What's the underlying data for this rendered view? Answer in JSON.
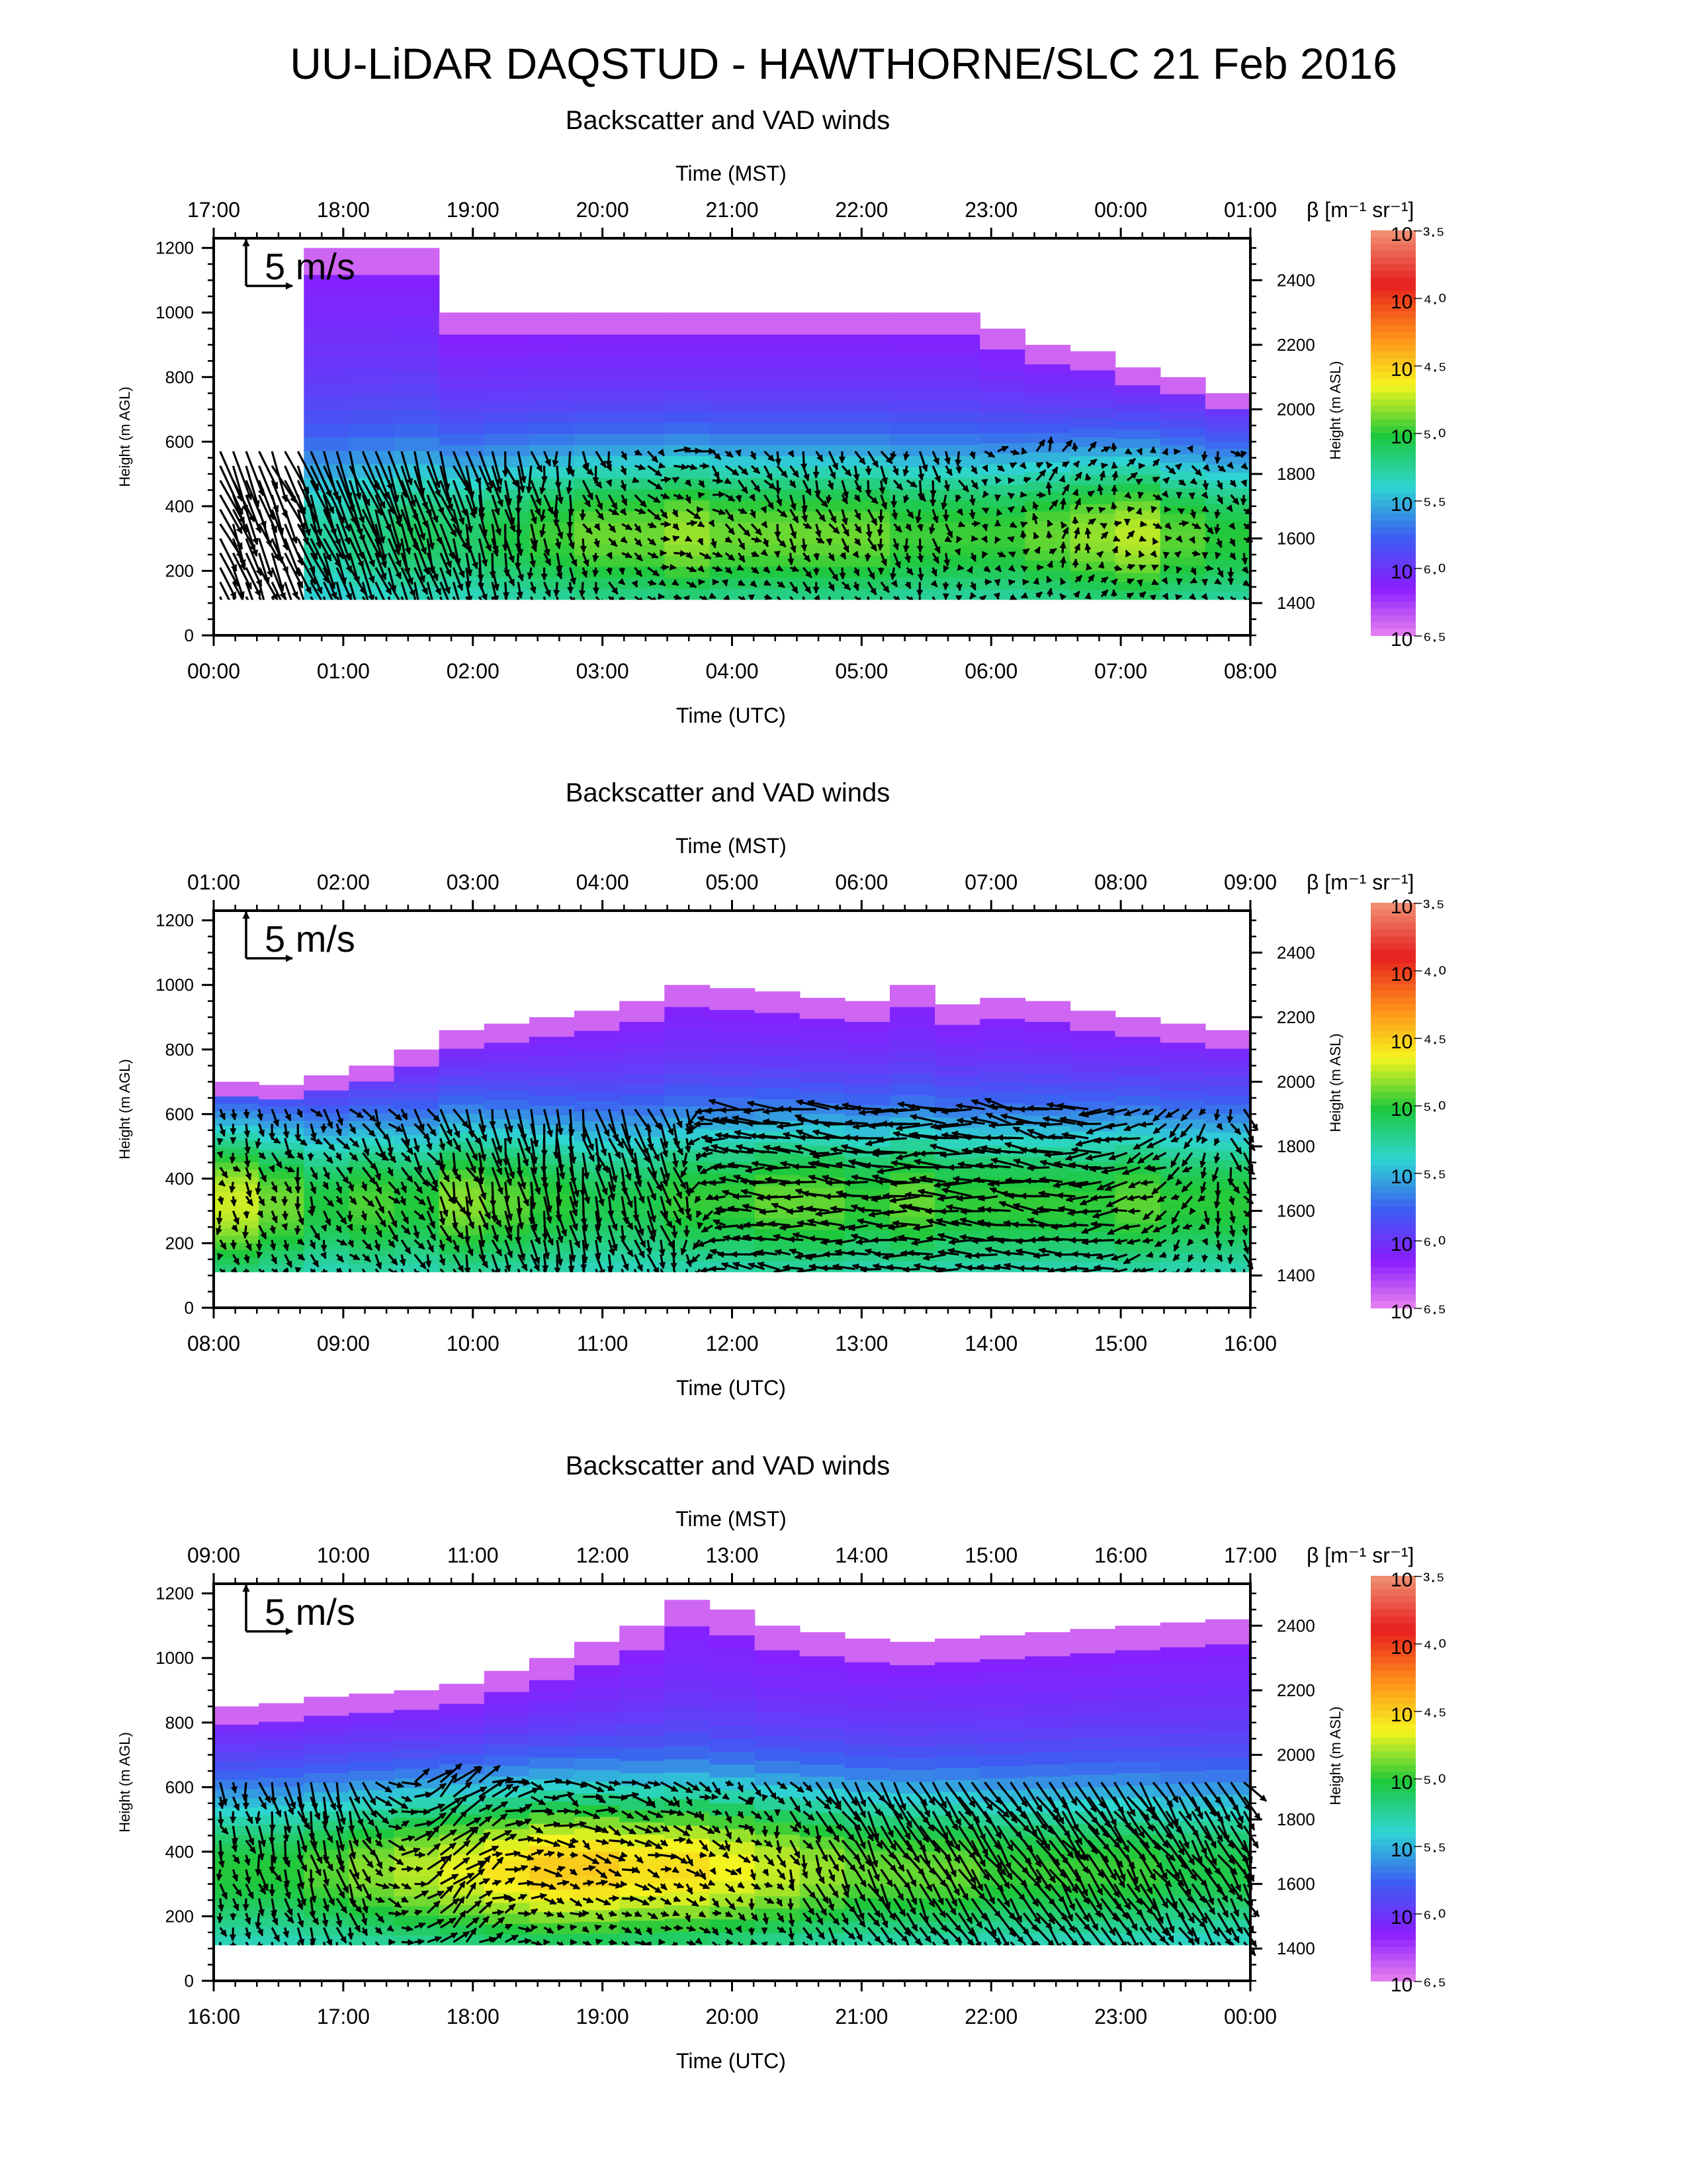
{
  "title": "UU-LiDAR DAQSTUD - HAWTHORNE/SLC 21 Feb 2016",
  "colors": {
    "white": "#ffffff",
    "scale": [
      "#ee88ee",
      "#8a1cff",
      "#3c5ef2",
      "#2ed6d2",
      "#1ec83c",
      "#f5f51e",
      "#ff8c1a",
      "#e61e1e",
      "#f08c70"
    ],
    "arrow": "#000000"
  },
  "icons": {
    "wind_arrow": "arrow-icon",
    "reference_arrow": "reference-arrow-icon"
  },
  "chart_data": [
    {
      "type": "heatmap",
      "title": "Backscatter and VAD winds",
      "top_xlabel": "Time (MST)",
      "top_ticks": [
        "17:00",
        "18:00",
        "19:00",
        "20:00",
        "21:00",
        "22:00",
        "23:00",
        "00:00",
        "01:00"
      ],
      "xlabel": "Time (UTC)",
      "bottom_ticks": [
        "00:00",
        "01:00",
        "02:00",
        "03:00",
        "04:00",
        "05:00",
        "06:00",
        "07:00",
        "08:00"
      ],
      "ylabel": "Height (m AGL)",
      "y_ticks": [
        "0",
        "200",
        "400",
        "600",
        "800",
        "1000",
        "1200"
      ],
      "ylim": [
        0,
        1230
      ],
      "right_ylabel": "Height (m ASL)",
      "right_ticks": [
        "1400",
        "1600",
        "1800",
        "2000",
        "2200",
        "2400"
      ],
      "right_ylim": [
        1300,
        2530
      ],
      "colorbar_label": "β [m⁻¹ sr⁻¹]",
      "colorbar_ticks": [
        "10⁻³·⁵",
        "10⁻⁴·⁰",
        "10⁻⁴·⁵",
        "10⁻⁵·⁰",
        "10⁻⁵·⁵",
        "10⁻⁶·⁰",
        "10⁻⁶·⁵"
      ],
      "colorbar_range": [
        -6.5,
        -3.5
      ],
      "reference_arrow_label": "5 m/s",
      "backscatter_top_agl": [
        0,
        0,
        1200,
        1200,
        1200,
        1000,
        1000,
        1000,
        1000,
        1000,
        1000,
        1000,
        1000,
        1000,
        1000,
        1000,
        1000,
        950,
        900,
        880,
        830,
        800,
        750
      ],
      "backscatter_bottom_agl": 110,
      "bright_layer": {
        "center_agl": 330,
        "strength": [
          0,
          0,
          0.3,
          0.35,
          0.4,
          0.4,
          0.45,
          0.5,
          0.55,
          0.55,
          0.6,
          0.55,
          0.55,
          0.55,
          0.55,
          0.5,
          0.5,
          0.5,
          0.55,
          0.6,
          0.65,
          0.55,
          0.5
        ]
      },
      "wind_top_agl": 600,
      "wind_regimes": [
        {
          "x": 0.0,
          "u": 2.0,
          "v": -4.5
        },
        {
          "x": 1.5,
          "u": 1.5,
          "v": -4.0
        },
        {
          "x": 2.6,
          "u": 0.2,
          "v": -2.0
        },
        {
          "x": 3.5,
          "u": 1.0,
          "v": -0.3
        },
        {
          "x": 4.5,
          "u": 0.6,
          "v": -1.2
        },
        {
          "x": 5.5,
          "u": 0.4,
          "v": -1.4
        },
        {
          "x": 6.5,
          "u": 0.3,
          "v": 1.0
        },
        {
          "x": 8.0,
          "u": 0.5,
          "v": -1.0
        }
      ]
    },
    {
      "type": "heatmap",
      "title": "Backscatter and VAD winds",
      "top_xlabel": "Time (MST)",
      "top_ticks": [
        "01:00",
        "02:00",
        "03:00",
        "04:00",
        "05:00",
        "06:00",
        "07:00",
        "08:00",
        "09:00"
      ],
      "xlabel": "Time (UTC)",
      "bottom_ticks": [
        "08:00",
        "09:00",
        "10:00",
        "11:00",
        "12:00",
        "13:00",
        "14:00",
        "15:00",
        "16:00"
      ],
      "ylabel": "Height (m AGL)",
      "y_ticks": [
        "0",
        "200",
        "400",
        "600",
        "800",
        "1000",
        "1200"
      ],
      "ylim": [
        0,
        1230
      ],
      "right_ylabel": "Height (m ASL)",
      "right_ticks": [
        "1400",
        "1600",
        "1800",
        "2000",
        "2200",
        "2400"
      ],
      "right_ylim": [
        1300,
        2530
      ],
      "colorbar_label": "β [m⁻¹ sr⁻¹]",
      "colorbar_ticks": [
        "10⁻³·⁵",
        "10⁻⁴·⁰",
        "10⁻⁴·⁵",
        "10⁻⁵·⁰",
        "10⁻⁵·⁵",
        "10⁻⁶·⁰",
        "10⁻⁶·⁵"
      ],
      "colorbar_range": [
        -6.5,
        -3.5
      ],
      "reference_arrow_label": "5 m/s",
      "backscatter_top_agl": [
        700,
        690,
        720,
        750,
        800,
        860,
        880,
        900,
        920,
        950,
        1000,
        990,
        980,
        960,
        950,
        1000,
        940,
        960,
        950,
        920,
        900,
        880,
        860
      ],
      "backscatter_bottom_agl": 110,
      "bright_layer": {
        "center_agl": 350,
        "strength": [
          0.7,
          0.6,
          0.5,
          0.55,
          0.5,
          0.6,
          0.55,
          0.5,
          0.45,
          0.45,
          0.5,
          0.5,
          0.55,
          0.55,
          0.5,
          0.55,
          0.5,
          0.5,
          0.5,
          0.5,
          0.55,
          0.5,
          0.5
        ]
      },
      "wind_top_agl": 620,
      "wind_regimes": [
        {
          "x": 0.0,
          "u": 0.2,
          "v": -1.0
        },
        {
          "x": 1.5,
          "u": 1.0,
          "v": -1.5
        },
        {
          "x": 2.5,
          "u": 0.5,
          "v": -3.0
        },
        {
          "x": 3.5,
          "u": 1.0,
          "v": -2.5
        },
        {
          "x": 4.0,
          "u": -2.5,
          "v": 0.3
        },
        {
          "x": 5.5,
          "u": -3.0,
          "v": 0.0
        },
        {
          "x": 6.3,
          "u": -3.0,
          "v": 0.5
        },
        {
          "x": 7.0,
          "u": -2.5,
          "v": -0.5
        },
        {
          "x": 8.0,
          "u": 1.0,
          "v": -1.5
        }
      ]
    },
    {
      "type": "heatmap",
      "title": "Backscatter and VAD winds",
      "top_xlabel": "Time (MST)",
      "top_ticks": [
        "09:00",
        "10:00",
        "11:00",
        "12:00",
        "13:00",
        "14:00",
        "15:00",
        "16:00",
        "17:00"
      ],
      "xlabel": "Time (UTC)",
      "bottom_ticks": [
        "16:00",
        "17:00",
        "18:00",
        "19:00",
        "20:00",
        "21:00",
        "22:00",
        "23:00",
        "00:00"
      ],
      "ylabel": "Height (m AGL)",
      "y_ticks": [
        "0",
        "200",
        "400",
        "600",
        "800",
        "1000",
        "1200"
      ],
      "ylim": [
        0,
        1230
      ],
      "right_ylabel": "Height (m ASL)",
      "right_ticks": [
        "1400",
        "1600",
        "1800",
        "2000",
        "2200",
        "2400"
      ],
      "right_ylim": [
        1300,
        2530
      ],
      "colorbar_label": "β [m⁻¹ sr⁻¹]",
      "colorbar_ticks": [
        "10⁻³·⁵",
        "10⁻⁴·⁰",
        "10⁻⁴·⁵",
        "10⁻⁵·⁰",
        "10⁻⁵·⁵",
        "10⁻⁶·⁰",
        "10⁻⁶·⁵"
      ],
      "colorbar_range": [
        -6.5,
        -3.5
      ],
      "reference_arrow_label": "5 m/s",
      "backscatter_top_agl": [
        850,
        860,
        880,
        890,
        900,
        920,
        960,
        1000,
        1050,
        1100,
        1180,
        1150,
        1100,
        1080,
        1060,
        1050,
        1060,
        1070,
        1080,
        1090,
        1100,
        1110,
        1120
      ],
      "backscatter_bottom_agl": 110,
      "bright_layer": {
        "center_agl": 360,
        "strength": [
          0.5,
          0.5,
          0.55,
          0.6,
          0.65,
          0.7,
          0.75,
          0.8,
          0.8,
          0.75,
          0.75,
          0.7,
          0.65,
          0.6,
          0.55,
          0.55,
          0.55,
          0.5,
          0.5,
          0.5,
          0.5,
          0.45,
          0.45
        ]
      },
      "wind_top_agl": 620,
      "wind_regimes": [
        {
          "x": 0.0,
          "u": 0.3,
          "v": -1.5
        },
        {
          "x": 1.0,
          "u": 0.8,
          "v": -2.5
        },
        {
          "x": 1.8,
          "u": 2.0,
          "v": 2.0
        },
        {
          "x": 2.5,
          "u": 1.5,
          "v": -0.3
        },
        {
          "x": 3.5,
          "u": 1.2,
          "v": -0.5
        },
        {
          "x": 4.3,
          "u": 0.5,
          "v": -1.0
        },
        {
          "x": 5.0,
          "u": 1.5,
          "v": -2.5
        },
        {
          "x": 6.5,
          "u": 2.0,
          "v": -2.8
        },
        {
          "x": 8.0,
          "u": 1.5,
          "v": -2.5
        }
      ]
    }
  ]
}
